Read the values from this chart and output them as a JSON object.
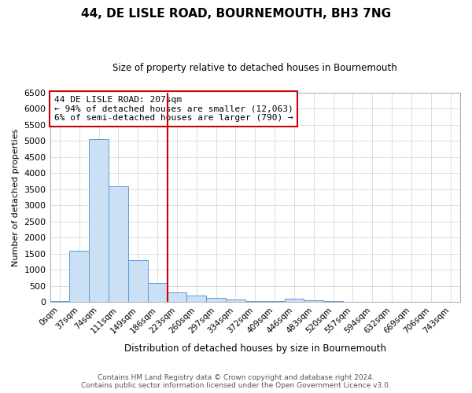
{
  "title": "44, DE LISLE ROAD, BOURNEMOUTH, BH3 7NG",
  "subtitle": "Size of property relative to detached houses in Bournemouth",
  "xlabel": "Distribution of detached houses by size in Bournemouth",
  "ylabel": "Number of detached properties",
  "footnote1": "Contains HM Land Registry data © Crown copyright and database right 2024.",
  "footnote2": "Contains public sector information licensed under the Open Government Licence v3.0.",
  "annotation_title": "44 DE LISLE ROAD: 207sqm",
  "annotation_line1": "← 94% of detached houses are smaller (12,063)",
  "annotation_line2": "6% of semi-detached houses are larger (790) →",
  "bar_color": "#cce0f5",
  "bar_edge_color": "#5b9bd5",
  "marker_color": "#cc0000",
  "categories": [
    "0sqm",
    "37sqm",
    "74sqm",
    "111sqm",
    "149sqm",
    "186sqm",
    "223sqm",
    "260sqm",
    "297sqm",
    "334sqm",
    "372sqm",
    "409sqm",
    "446sqm",
    "483sqm",
    "520sqm",
    "557sqm",
    "594sqm",
    "632sqm",
    "669sqm",
    "706sqm",
    "743sqm"
  ],
  "values": [
    20,
    1600,
    5050,
    3600,
    1300,
    600,
    300,
    200,
    130,
    80,
    40,
    20,
    100,
    60,
    30,
    10,
    5,
    3,
    2,
    1,
    1
  ],
  "ylim": [
    0,
    6500
  ],
  "yticks": [
    0,
    500,
    1000,
    1500,
    2000,
    2500,
    3000,
    3500,
    4000,
    4500,
    5000,
    5500,
    6000,
    6500
  ],
  "vline_pos": 6.0
}
